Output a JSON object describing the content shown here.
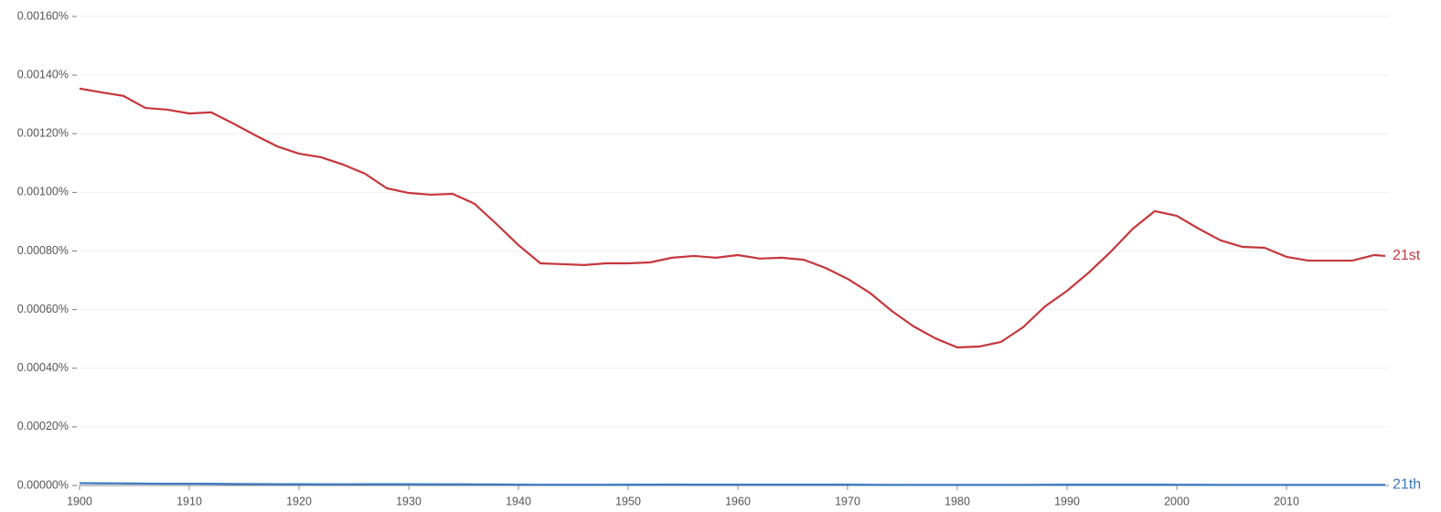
{
  "chart_data": {
    "type": "line",
    "x": [
      1900,
      1902,
      1904,
      1906,
      1908,
      1910,
      1912,
      1914,
      1916,
      1918,
      1920,
      1922,
      1924,
      1926,
      1928,
      1930,
      1932,
      1934,
      1936,
      1938,
      1940,
      1942,
      1944,
      1946,
      1948,
      1950,
      1952,
      1954,
      1956,
      1958,
      1960,
      1962,
      1964,
      1966,
      1968,
      1970,
      1972,
      1974,
      1976,
      1978,
      1980,
      1982,
      1984,
      1986,
      1988,
      1990,
      1992,
      1994,
      1996,
      1998,
      2000,
      2002,
      2004,
      2006,
      2008,
      2010,
      2012,
      2014,
      2016,
      2018,
      2019
    ],
    "series": [
      {
        "name": "21st",
        "color": "#c5373c",
        "values": [
          0.001354,
          0.001341,
          0.001329,
          0.001288,
          0.001282,
          0.001269,
          0.001273,
          0.001235,
          0.001195,
          0.001157,
          0.001132,
          0.00112,
          0.001095,
          0.001064,
          0.001014,
          0.000998,
          0.000992,
          0.000995,
          0.000961,
          0.000892,
          0.00082,
          0.000758,
          0.000755,
          0.000752,
          0.000758,
          0.000758,
          0.000761,
          0.000777,
          0.000783,
          0.000777,
          0.000786,
          0.000774,
          0.000777,
          0.00077,
          0.000742,
          0.000705,
          0.000658,
          0.000596,
          0.000543,
          0.000502,
          0.000471,
          0.000474,
          0.00049,
          0.00054,
          0.000611,
          0.000664,
          0.000727,
          0.000798,
          0.000876,
          0.000936,
          0.00092,
          0.000876,
          0.000836,
          0.000814,
          0.000811,
          0.00078,
          0.000767,
          0.000767,
          0.000767,
          0.000786,
          0.000783
        ]
      },
      {
        "name": "21th",
        "color": "#3a78c3",
        "values": [
          8e-06,
          7.5e-06,
          7e-06,
          6.5e-06,
          6e-06,
          6e-06,
          5.8e-06,
          5e-06,
          4.8e-06,
          4.5e-06,
          4.3e-06,
          4e-06,
          4e-06,
          4.2e-06,
          4.2e-06,
          4.2e-06,
          4e-06,
          4e-06,
          3.7e-06,
          3.5e-06,
          3e-06,
          2.5e-06,
          2.3e-06,
          2.3e-06,
          2.5e-06,
          2.8e-06,
          3e-06,
          3.2e-06,
          3e-06,
          3e-06,
          3e-06,
          3e-06,
          3e-06,
          3e-06,
          3e-06,
          2.8e-06,
          2.5e-06,
          2.2e-06,
          2e-06,
          2e-06,
          2e-06,
          2e-06,
          2e-06,
          2.2e-06,
          2.5e-06,
          2.7e-06,
          2.7e-06,
          2.7e-06,
          2.7e-06,
          2.7e-06,
          2.5e-06,
          2.3e-06,
          2.2e-06,
          2e-06,
          2e-06,
          2e-06,
          2e-06,
          2e-06,
          2e-06,
          2e-06,
          2e-06
        ]
      }
    ],
    "xlim": [
      1900,
      2019
    ],
    "xticks": [
      1900,
      1910,
      1920,
      1930,
      1940,
      1950,
      1960,
      1970,
      1980,
      1990,
      2000,
      2010
    ],
    "ylim": [
      0,
      0.0016
    ],
    "yticks": [
      {
        "value": 0,
        "label": "0.00000%"
      },
      {
        "value": 0.0002,
        "label": "0.00020%"
      },
      {
        "value": 0.0004,
        "label": "0.00040%"
      },
      {
        "value": 0.0006,
        "label": "0.00060%"
      },
      {
        "value": 0.0008,
        "label": "0.00080%"
      },
      {
        "value": 0.001,
        "label": "0.00100%"
      },
      {
        "value": 0.0012,
        "label": "0.00120%"
      },
      {
        "value": 0.0014,
        "label": "0.00140%"
      },
      {
        "value": 0.0016,
        "label": "0.00160%"
      }
    ],
    "grid": true
  }
}
